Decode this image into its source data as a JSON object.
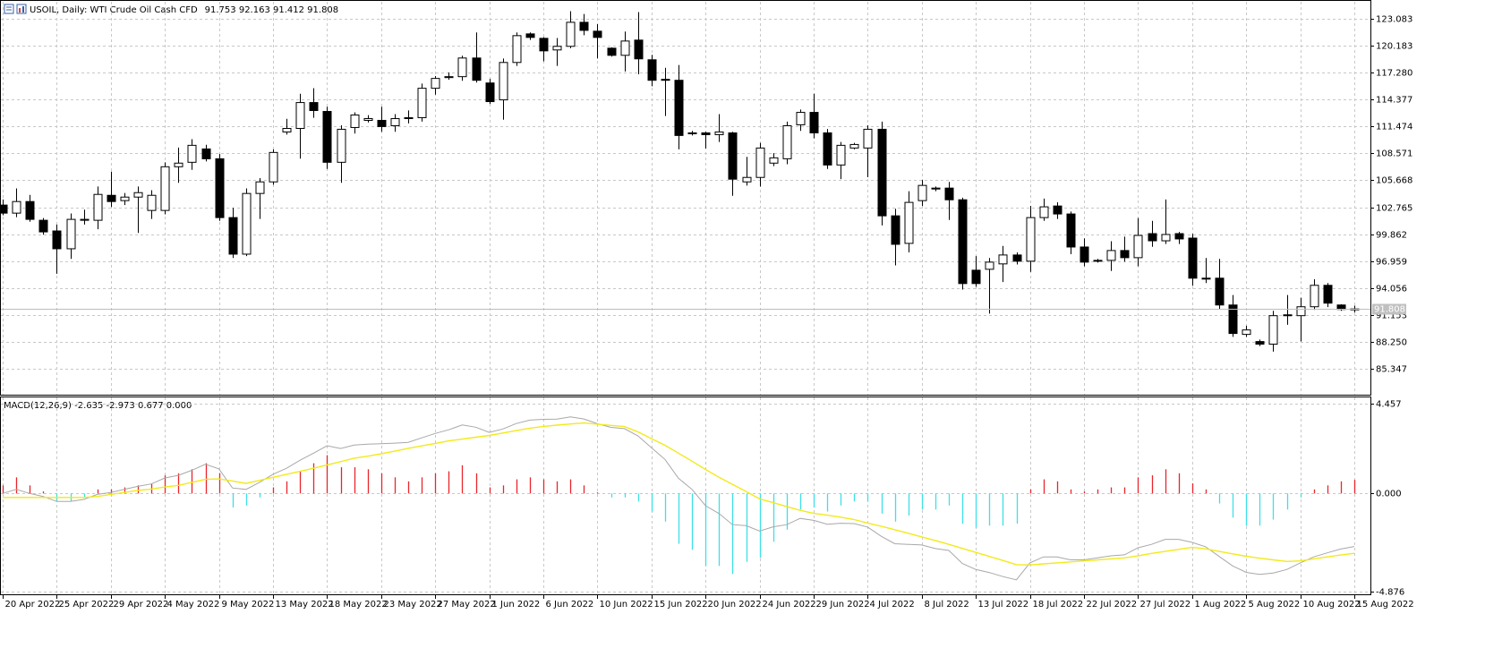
{
  "chart_data": [
    {
      "type": "candlestick",
      "title": "USOIL, Daily:  WTI Crude Oil Cash CFD",
      "header_values": "91.753 92.163 91.412 91.808",
      "categories": [
        "20 Apr 2022",
        null,
        null,
        null,
        "25 Apr 2022",
        null,
        null,
        null,
        "29 Apr 2022",
        null,
        null,
        null,
        "4 May 2022",
        null,
        null,
        null,
        "9 May 2022",
        null,
        null,
        null,
        "13 May 2022",
        null,
        null,
        null,
        "18 May 2022",
        null,
        null,
        null,
        "23 May 2022",
        null,
        null,
        null,
        "27 May 2022",
        null,
        null,
        null,
        "1 Jun 2022",
        null,
        null,
        null,
        "6 Jun 2022",
        null,
        null,
        null,
        "10 Jun 2022",
        null,
        null,
        null,
        "15 Jun 2022",
        null,
        null,
        null,
        "20 Jun 2022",
        null,
        null,
        null,
        "24 Jun 2022",
        null,
        null,
        null,
        "29 Jun 2022",
        null,
        null,
        null,
        "4 Jul 2022",
        null,
        null,
        null,
        "8 Jul 2022",
        null,
        null,
        null,
        "13 Jul 2022",
        null,
        null,
        null,
        "18 Jul 2022",
        null,
        null,
        null,
        "22 Jul 2022",
        null,
        null,
        null,
        "27 Jul 2022",
        null,
        null,
        null,
        "1 Aug 2022",
        null,
        null,
        null,
        "5 Aug 2022",
        null,
        null,
        null,
        "10 Aug 2022",
        null,
        null,
        null,
        "15 Aug 2022"
      ],
      "open": [
        103.0,
        102.13,
        103.38,
        101.36,
        100.21,
        98.29,
        101.36,
        101.36,
        104.05,
        103.48,
        103.86,
        102.42,
        102.42,
        107.13,
        107.61,
        109.05,
        107.99,
        101.65,
        97.71,
        104.25,
        105.5,
        110.88,
        111.26,
        114.05,
        113.09,
        107.61,
        111.36,
        112.13,
        112.13,
        111.55,
        112.32,
        112.42,
        115.59,
        116.74,
        116.84,
        118.85,
        116.16,
        114.34,
        118.37,
        121.45,
        120.97,
        119.72,
        120.11,
        122.7,
        121.74,
        119.91,
        119.14,
        120.78,
        118.66,
        116.55,
        116.45,
        110.69,
        110.78,
        110.59,
        110.78,
        105.5,
        105.98,
        107.52,
        107.99,
        111.65,
        112.99,
        110.78,
        107.32,
        109.15,
        109.15,
        111.17,
        101.84,
        98.87,
        103.48,
        104.73,
        104.83,
        103.57,
        95.98,
        96.08,
        96.66,
        97.62,
        96.95,
        101.65,
        102.9,
        102.04,
        98.48,
        97.04,
        97.04,
        98.1,
        97.33,
        99.92,
        99.15,
        99.92,
        99.44,
        95.12,
        95.12,
        92.23,
        89.06,
        88.29,
        88.01,
        91.08,
        91.08,
        92.04,
        94.35,
        92.23,
        91.753
      ],
      "high": [
        103.6,
        104.8,
        104.1,
        101.6,
        100.9,
        102.1,
        102.5,
        105.0,
        106.6,
        104.3,
        105.0,
        104.6,
        107.6,
        109.2,
        110.1,
        109.5,
        108.5,
        102.7,
        104.8,
        105.9,
        109.0,
        112.3,
        115.0,
        115.6,
        113.6,
        111.6,
        113.0,
        112.7,
        113.6,
        112.8,
        113.2,
        116.1,
        116.9,
        117.3,
        119.1,
        121.6,
        116.6,
        118.8,
        121.6,
        121.6,
        121.1,
        121.0,
        123.9,
        123.6,
        122.5,
        120.0,
        121.7,
        123.8,
        119.2,
        117.8,
        118.1,
        111.0,
        110.9,
        112.8,
        110.9,
        108.2,
        109.7,
        108.6,
        112.0,
        113.3,
        115.0,
        111.2,
        109.8,
        109.7,
        111.6,
        112.0,
        102.6,
        104.5,
        105.7,
        105.0,
        105.5,
        103.8,
        97.5,
        97.3,
        98.6,
        97.9,
        102.9,
        103.7,
        103.3,
        102.3,
        99.4,
        97.2,
        99.1,
        99.6,
        101.6,
        101.3,
        103.6,
        100.1,
        99.9,
        97.3,
        97.2,
        93.3,
        90.0,
        88.5,
        91.6,
        93.3,
        93.0,
        95.0,
        94.6,
        92.3,
        92.163
      ],
      "low": [
        101.9,
        101.7,
        101.2,
        99.8,
        95.6,
        97.2,
        100.9,
        100.4,
        102.8,
        103.0,
        100.0,
        101.5,
        102.0,
        105.4,
        106.8,
        107.7,
        101.3,
        97.3,
        97.5,
        101.5,
        105.2,
        110.6,
        108.0,
        112.4,
        106.9,
        105.4,
        110.7,
        111.9,
        110.9,
        110.9,
        111.8,
        112.0,
        114.9,
        116.5,
        116.4,
        116.2,
        113.9,
        112.2,
        118.0,
        120.8,
        118.5,
        118.0,
        119.9,
        121.3,
        118.8,
        119.0,
        117.4,
        117.1,
        115.8,
        112.6,
        109.0,
        110.5,
        109.1,
        109.8,
        104.0,
        105.1,
        105.0,
        107.2,
        107.4,
        111.0,
        110.2,
        106.9,
        105.8,
        109.0,
        106.0,
        100.8,
        96.5,
        97.9,
        102.9,
        104.5,
        101.4,
        93.9,
        94.2,
        91.3,
        94.7,
        96.6,
        95.8,
        101.3,
        101.5,
        97.7,
        96.4,
        96.8,
        95.9,
        96.9,
        96.4,
        98.5,
        98.8,
        98.8,
        94.3,
        94.6,
        91.8,
        88.8,
        88.8,
        87.8,
        87.2,
        90.1,
        88.3,
        91.7,
        92.0,
        91.6,
        91.412
      ],
      "close": [
        102.13,
        103.38,
        101.46,
        100.11,
        98.29,
        101.46,
        101.46,
        104.15,
        103.38,
        103.86,
        104.34,
        104.05,
        107.13,
        107.52,
        109.44,
        107.99,
        101.65,
        97.71,
        104.25,
        105.5,
        108.67,
        111.26,
        114.05,
        113.19,
        107.61,
        111.17,
        112.71,
        112.32,
        111.46,
        112.32,
        112.42,
        115.59,
        116.65,
        116.84,
        118.85,
        116.45,
        114.15,
        118.37,
        121.26,
        121.07,
        119.62,
        120.11,
        122.7,
        121.83,
        121.07,
        119.14,
        120.68,
        118.76,
        116.45,
        116.45,
        110.5,
        110.78,
        110.59,
        110.88,
        105.79,
        105.98,
        109.15,
        108.09,
        111.55,
        112.99,
        110.78,
        107.32,
        109.44,
        109.53,
        111.17,
        101.84,
        98.77,
        103.29,
        105.12,
        104.83,
        103.57,
        94.54,
        94.54,
        96.85,
        97.62,
        96.95,
        101.65,
        102.81,
        102.04,
        98.48,
        96.85,
        96.95,
        98.1,
        97.33,
        99.73,
        99.15,
        99.83,
        99.35,
        95.12,
        95.02,
        92.23,
        89.16,
        89.54,
        88.01,
        91.08,
        91.17,
        92.04,
        94.35,
        92.43,
        91.75,
        91.808
      ],
      "up_color": "#ffffff",
      "down_color": "#000000",
      "last_price": 91.808,
      "ylim": [
        82.56,
        124.91
      ],
      "yticks": [
        123.083,
        120.183,
        {
          "value": 117.28,
          "label": "117.280"
        },
        114.377,
        111.474,
        108.571,
        105.668,
        102.765,
        99.862,
        96.959,
        94.056,
        91.153,
        {
          "value": 88.25,
          "label": "88.250"
        },
        85.347
      ],
      "grid": true
    },
    {
      "type": "macd",
      "title": "MACD(12,26,9) -2.635 -2.973 0.677 0.000",
      "histogram": [
        0.4,
        0.8,
        0.4,
        0.1,
        -0.4,
        -0.4,
        -0.2,
        0.2,
        0.2,
        0.3,
        0.4,
        0.5,
        0.9,
        1.0,
        1.2,
        1.5,
        1.0,
        -0.7,
        -0.6,
        -0.2,
        0.3,
        0.6,
        1.1,
        1.5,
        1.9,
        1.3,
        1.3,
        1.2,
        1.0,
        0.8,
        0.6,
        0.8,
        1.0,
        1.1,
        1.4,
        1.0,
        0.3,
        0.4,
        0.7,
        0.8,
        0.7,
        0.6,
        0.7,
        0.4,
        0.05,
        -0.2,
        -0.2,
        -0.4,
        -0.9,
        -1.4,
        -2.5,
        -2.8,
        -3.6,
        -3.6,
        -4.0,
        -3.4,
        -3.2,
        -2.4,
        -1.8,
        -0.8,
        -0.7,
        -0.9,
        -0.6,
        -0.4,
        -0.4,
        -1.0,
        -1.4,
        -1.1,
        -0.8,
        -0.8,
        -0.6,
        -1.5,
        -1.7,
        -1.6,
        -1.6,
        -1.5,
        0.2,
        0.7,
        0.6,
        0.2,
        0.1,
        0.2,
        0.3,
        0.3,
        0.8,
        0.9,
        1.2,
        1.0,
        0.5,
        0.2,
        -0.5,
        -1.2,
        -1.6,
        -1.6,
        -1.3,
        -0.8,
        -0.2,
        0.2,
        0.4,
        0.6,
        0.677
      ],
      "macd": [
        0.0,
        0.2,
        0.0,
        -0.15,
        -0.4,
        -0.4,
        -0.3,
        -0.05,
        0.05,
        0.2,
        0.35,
        0.47,
        0.77,
        0.9,
        1.15,
        1.45,
        1.22,
        0.27,
        0.2,
        0.55,
        0.95,
        1.25,
        1.65,
        2.0,
        2.37,
        2.23,
        2.4,
        2.45,
        2.47,
        2.5,
        2.54,
        2.76,
        2.98,
        3.16,
        3.4,
        3.29,
        3.03,
        3.2,
        3.47,
        3.64,
        3.68,
        3.69,
        3.8,
        3.7,
        3.465,
        3.28,
        3.22,
        2.86,
        2.27,
        1.69,
        0.75,
        0.2,
        -0.61,
        -1.0,
        -1.55,
        -1.6,
        -1.87,
        -1.66,
        -1.55,
        -1.24,
        -1.34,
        -1.53,
        -1.48,
        -1.5,
        -1.67,
        -2.13,
        -2.5,
        -2.53,
        -2.56,
        -2.74,
        -2.83,
        -3.48,
        -3.78,
        -3.93,
        -4.13,
        -4.29,
        -3.45,
        -3.15,
        -3.15,
        -3.3,
        -3.3,
        -3.2,
        -3.1,
        -3.05,
        -2.7,
        -2.53,
        -2.28,
        -2.28,
        -2.43,
        -2.65,
        -3.13,
        -3.6,
        -3.92,
        -4.02,
        -3.95,
        -3.78,
        -3.45,
        -3.15,
        -2.95,
        -2.76,
        -2.635
      ],
      "signal": [
        -0.2,
        -0.2,
        -0.2,
        -0.2,
        -0.2,
        -0.2,
        -0.2,
        -0.15,
        -0.05,
        0.05,
        0.15,
        0.22,
        0.32,
        0.4,
        0.55,
        0.7,
        0.72,
        0.62,
        0.5,
        0.65,
        0.8,
        0.95,
        1.1,
        1.25,
        1.42,
        1.58,
        1.75,
        1.85,
        1.97,
        2.1,
        2.24,
        2.36,
        2.48,
        2.61,
        2.7,
        2.79,
        2.88,
        3.0,
        3.12,
        3.24,
        3.33,
        3.39,
        3.45,
        3.5,
        3.44,
        3.38,
        3.32,
        3.06,
        2.72,
        2.39,
        2.0,
        1.6,
        1.19,
        0.8,
        0.45,
        0.1,
        -0.27,
        -0.46,
        -0.65,
        -0.84,
        -0.99,
        -1.08,
        -1.18,
        -1.3,
        -1.47,
        -1.63,
        -1.8,
        -1.98,
        -2.16,
        -2.34,
        -2.53,
        -2.73,
        -2.93,
        -3.13,
        -3.33,
        -3.54,
        -3.55,
        -3.5,
        -3.45,
        -3.4,
        -3.35,
        -3.3,
        -3.25,
        -3.2,
        -3.1,
        -2.98,
        -2.88,
        -2.78,
        -2.68,
        -2.75,
        -2.88,
        -3.0,
        -3.12,
        -3.22,
        -3.3,
        -3.38,
        -3.35,
        -3.25,
        -3.15,
        -3.06,
        -2.973
      ],
      "hist_up_color": "#e8262a",
      "hist_down_color": "#3ee0e8",
      "macd_color": "#a8a8a8",
      "signal_color": "#f2ea1a",
      "ylim": [
        -5.01,
        4.77
      ],
      "yticks": [
        4.457,
        {
          "value": 0,
          "label": "0.000"
        },
        -4.876
      ],
      "grid": true
    }
  ]
}
